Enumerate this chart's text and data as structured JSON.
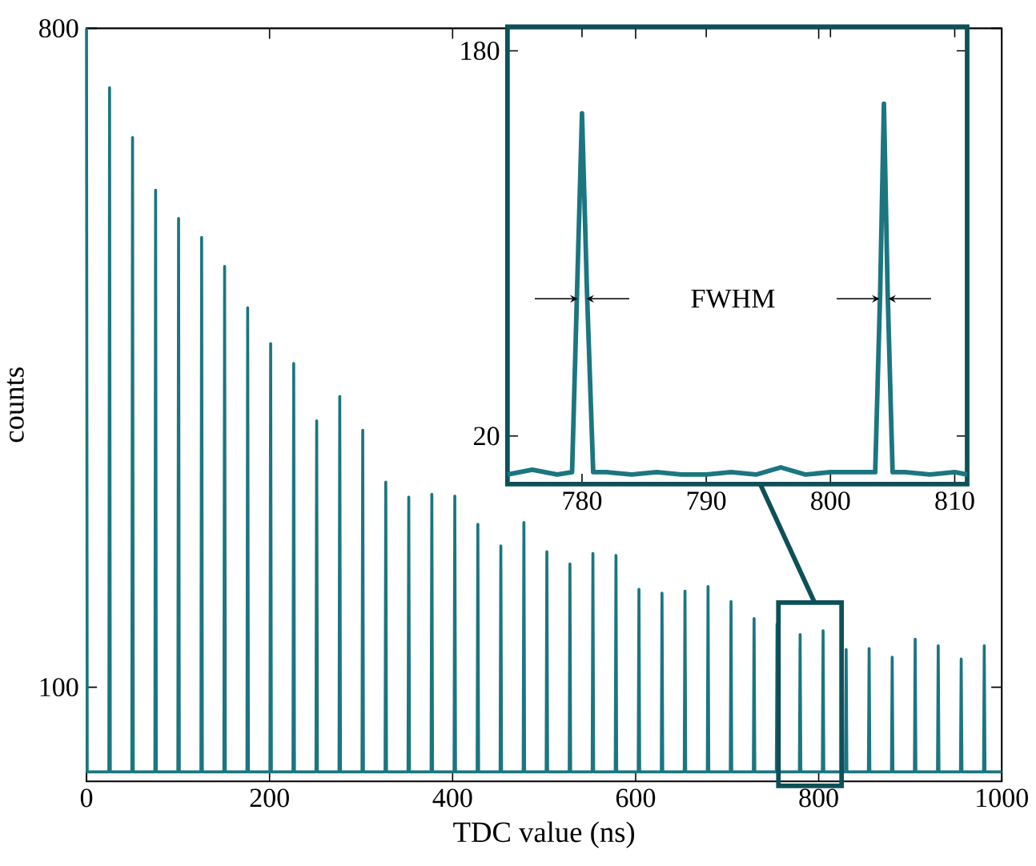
{
  "chart_data": [
    {
      "type": "line",
      "xlabel": "TDC value (ns)",
      "ylabel": "counts",
      "xlim": [
        0,
        1000
      ],
      "ylim": [
        0,
        800
      ],
      "xticks": [
        0,
        200,
        400,
        600,
        800,
        1000
      ],
      "yticks": [
        100,
        800
      ],
      "series": [
        {
          "color": "#1b7680",
          "x": [
            0,
            0.8,
            24.4,
            25.2,
            26.0,
            49.5,
            50.3,
            51.1,
            74.7,
            75.5,
            76.3,
            99.8,
            100.6,
            101.4,
            125.0,
            125.8,
            126.6,
            150.1,
            150.9,
            151.7,
            175.3,
            176.1,
            176.9,
            200.4,
            201.2,
            202.0,
            225.6,
            226.4,
            227.2,
            250.7,
            251.5,
            252.3,
            275.9,
            276.7,
            277.5,
            301.0,
            301.8,
            302.6,
            326.2,
            327.0,
            327.8,
            351.3,
            352.1,
            352.9,
            376.5,
            377.3,
            378.1,
            401.6,
            402.4,
            403.2,
            426.8,
            427.6,
            428.4,
            451.9,
            452.7,
            453.5,
            477.1,
            477.9,
            478.7,
            502.2,
            503.0,
            503.8,
            527.4,
            528.2,
            529.0,
            552.5,
            553.3,
            554.1,
            577.7,
            578.5,
            579.3,
            602.8,
            603.6,
            604.4,
            628.0,
            628.8,
            629.6,
            653.1,
            653.9,
            654.7,
            678.3,
            679.1,
            679.9,
            703.4,
            704.2,
            705.0,
            728.6,
            729.4,
            730.2,
            753.7,
            754.5,
            755.3,
            778.9,
            779.7,
            780.5,
            804.0,
            804.8,
            805.6,
            829.2,
            830.0,
            830.8,
            854.3,
            855.1,
            855.9,
            879.5,
            880.3,
            881.1,
            904.6,
            905.4,
            906.2,
            929.8,
            930.6,
            931.4,
            954.9,
            955.7,
            956.5,
            980.1,
            980.9,
            981.7,
            1000
          ],
          "values": [
            800,
            10,
            10,
            737,
            10,
            10,
            684,
            10,
            10,
            628,
            10,
            10,
            598,
            10,
            10,
            578,
            10,
            10,
            547,
            10,
            10,
            503,
            10,
            10,
            465,
            10,
            10,
            444,
            10,
            10,
            383,
            10,
            10,
            409,
            10,
            10,
            373,
            10,
            10,
            318,
            10,
            10,
            302,
            10,
            10,
            305,
            10,
            10,
            303,
            10,
            10,
            273,
            10,
            10,
            250,
            10,
            10,
            275,
            10,
            10,
            244,
            10,
            10,
            231,
            10,
            10,
            242,
            10,
            10,
            240,
            10,
            10,
            204,
            10,
            10,
            200,
            10,
            10,
            202,
            10,
            10,
            207,
            10,
            10,
            191,
            10,
            10,
            173,
            10,
            10,
            167,
            10,
            10,
            156,
            10,
            10,
            160,
            10,
            10,
            140,
            10,
            10,
            141,
            10,
            10,
            132,
            10,
            10,
            151,
            10,
            10,
            144,
            10,
            10,
            130,
            10,
            10,
            144,
            10,
            10
          ]
        }
      ]
    },
    {
      "type": "line",
      "xlim": [
        774,
        811
      ],
      "ylim": [
        0,
        190
      ],
      "xticks": [
        780,
        790,
        800,
        810
      ],
      "yticks": [
        20,
        180
      ],
      "annotations": [
        "FWHM"
      ],
      "series": [
        {
          "color": "#1b7680",
          "x": [
            774,
            776,
            778,
            779.2,
            779.6,
            780.0,
            780.4,
            780.9,
            782,
            784,
            786,
            788,
            790,
            792,
            794,
            796,
            798,
            800,
            802,
            803.6,
            804.0,
            804.3,
            804.6,
            805.0,
            806,
            808,
            810,
            811
          ],
          "values": [
            4,
            6,
            4,
            5,
            80,
            154,
            80,
            5,
            5,
            4,
            5,
            4,
            4,
            5,
            4,
            7,
            4,
            5,
            5,
            5,
            80,
            158,
            80,
            5,
            5,
            4,
            5,
            4
          ]
        }
      ]
    }
  ]
}
